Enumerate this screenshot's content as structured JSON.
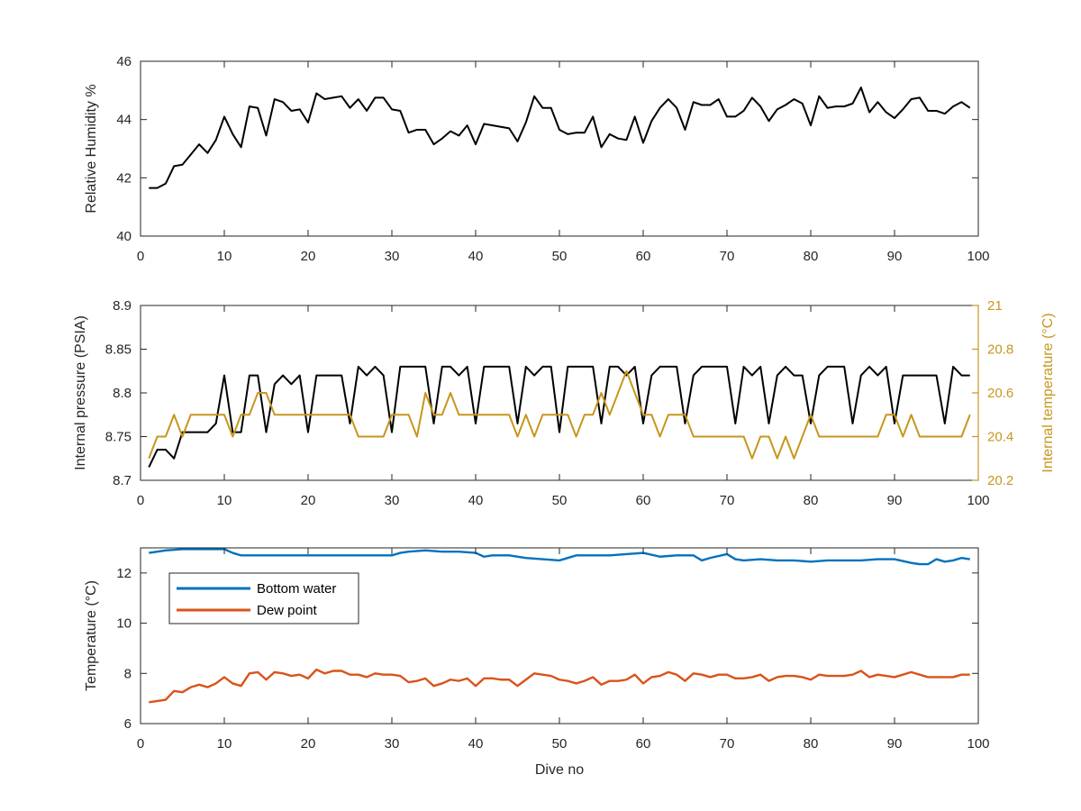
{
  "chart_data": [
    {
      "type": "line",
      "xlabel": "",
      "ylabel": "Relative Humidity %",
      "xlim": [
        0,
        100
      ],
      "ylim": [
        40,
        46
      ],
      "xticks": [
        0,
        10,
        20,
        30,
        40,
        50,
        60,
        70,
        80,
        90,
        100
      ],
      "yticks": [
        40,
        42,
        44,
        46
      ],
      "grid": false,
      "series": [
        {
          "color": "#000000",
          "x": [
            1,
            2,
            3,
            4,
            5,
            6,
            7,
            8,
            9,
            10,
            11,
            12,
            13,
            14,
            15,
            16,
            17,
            18,
            19,
            20,
            21,
            22,
            23,
            24,
            25,
            26,
            27,
            28,
            29,
            30,
            31,
            32,
            33,
            34,
            35,
            36,
            37,
            38,
            39,
            40,
            41,
            42,
            43,
            44,
            45,
            46,
            47,
            48,
            49,
            50,
            51,
            52,
            53,
            54,
            55,
            56,
            57,
            58,
            59,
            60,
            61,
            62,
            63,
            64,
            65,
            66,
            67,
            68,
            69,
            70,
            71,
            72,
            73,
            74,
            75,
            76,
            77,
            78,
            79,
            80,
            81,
            82,
            83,
            84,
            85,
            86,
            87,
            88,
            89,
            90,
            91,
            92,
            93,
            94,
            95,
            96,
            97,
            98,
            99
          ],
          "y": [
            41.65,
            41.65,
            41.8,
            42.4,
            42.45,
            42.8,
            43.15,
            42.85,
            43.3,
            44.1,
            43.5,
            43.05,
            44.45,
            44.4,
            43.45,
            44.7,
            44.6,
            44.3,
            44.35,
            43.9,
            44.9,
            44.7,
            44.75,
            44.8,
            44.4,
            44.7,
            44.3,
            44.75,
            44.75,
            44.35,
            44.3,
            43.55,
            43.65,
            43.65,
            43.15,
            43.35,
            43.6,
            43.45,
            43.8,
            43.15,
            43.85,
            43.8,
            43.75,
            43.7,
            43.25,
            43.9,
            44.8,
            44.4,
            44.4,
            43.65,
            43.5,
            43.55,
            43.55,
            44.1,
            43.05,
            43.5,
            43.35,
            43.3,
            44.1,
            43.2,
            43.95,
            44.4,
            44.7,
            44.4,
            43.65,
            44.6,
            44.5,
            44.5,
            44.7,
            44.1,
            44.1,
            44.3,
            44.75,
            44.45,
            43.95,
            44.35,
            44.5,
            44.7,
            44.55,
            43.8,
            44.8,
            44.4,
            44.45,
            44.45,
            44.55,
            45.1,
            44.25,
            44.6,
            44.25,
            44.05,
            44.35,
            44.7,
            44.75,
            44.3,
            44.3,
            44.2,
            44.45,
            44.6,
            44.4
          ]
        }
      ]
    },
    {
      "type": "line",
      "xlabel": "",
      "ylabel": "Internal pressure (PSIA)",
      "y2label": "Internal temperature (°C)",
      "xlim": [
        0,
        100
      ],
      "ylim": [
        8.7,
        8.9
      ],
      "y2lim": [
        20.2,
        21
      ],
      "xticks": [
        0,
        10,
        20,
        30,
        40,
        50,
        60,
        70,
        80,
        90,
        100
      ],
      "yticks": [
        8.7,
        8.75,
        8.8,
        8.85,
        8.9
      ],
      "yticklabels": [
        "8.7",
        "8.75",
        "8.8",
        "8.85",
        "8.9"
      ],
      "y2ticks": [
        20.2,
        20.4,
        20.6,
        20.8,
        21
      ],
      "y2ticklabels": [
        "20.2",
        "20.4",
        "20.6",
        "20.8",
        "21"
      ],
      "y2color": "#C8961E",
      "grid": false,
      "series": [
        {
          "axis": "left",
          "color": "#000000",
          "x": [
            1,
            2,
            3,
            4,
            5,
            6,
            7,
            8,
            9,
            10,
            11,
            12,
            13,
            14,
            15,
            16,
            17,
            18,
            19,
            20,
            21,
            22,
            23,
            24,
            25,
            26,
            27,
            28,
            29,
            30,
            31,
            32,
            33,
            34,
            35,
            36,
            37,
            38,
            39,
            40,
            41,
            42,
            43,
            44,
            45,
            46,
            47,
            48,
            49,
            50,
            51,
            52,
            53,
            54,
            55,
            56,
            57,
            58,
            59,
            60,
            61,
            62,
            63,
            64,
            65,
            66,
            67,
            68,
            69,
            70,
            71,
            72,
            73,
            74,
            75,
            76,
            77,
            78,
            79,
            80,
            81,
            82,
            83,
            84,
            85,
            86,
            87,
            88,
            89,
            90,
            91,
            92,
            93,
            94,
            95,
            96,
            97,
            98,
            99
          ],
          "y": [
            8.715,
            8.735,
            8.735,
            8.725,
            8.755,
            8.755,
            8.755,
            8.755,
            8.765,
            8.82,
            8.755,
            8.755,
            8.82,
            8.82,
            8.755,
            8.81,
            8.82,
            8.81,
            8.82,
            8.755,
            8.82,
            8.82,
            8.82,
            8.82,
            8.765,
            8.83,
            8.82,
            8.83,
            8.82,
            8.755,
            8.83,
            8.83,
            8.83,
            8.83,
            8.765,
            8.83,
            8.83,
            8.82,
            8.83,
            8.765,
            8.83,
            8.83,
            8.83,
            8.83,
            8.765,
            8.83,
            8.82,
            8.83,
            8.83,
            8.755,
            8.83,
            8.83,
            8.83,
            8.83,
            8.765,
            8.83,
            8.83,
            8.82,
            8.83,
            8.765,
            8.82,
            8.83,
            8.83,
            8.83,
            8.765,
            8.82,
            8.83,
            8.83,
            8.83,
            8.83,
            8.765,
            8.83,
            8.82,
            8.83,
            8.765,
            8.82,
            8.83,
            8.82,
            8.82,
            8.765,
            8.82,
            8.83,
            8.83,
            8.83,
            8.765,
            8.82,
            8.83,
            8.82,
            8.83,
            8.765,
            8.82,
            8.82,
            8.82,
            8.82,
            8.82,
            8.765,
            8.83,
            8.82,
            8.82
          ]
        },
        {
          "axis": "right",
          "color": "#C8961E",
          "x": [
            1,
            2,
            3,
            4,
            5,
            6,
            7,
            8,
            9,
            10,
            11,
            12,
            13,
            14,
            15,
            16,
            17,
            18,
            19,
            20,
            21,
            22,
            23,
            24,
            25,
            26,
            27,
            28,
            29,
            30,
            31,
            32,
            33,
            34,
            35,
            36,
            37,
            38,
            39,
            40,
            41,
            42,
            43,
            44,
            45,
            46,
            47,
            48,
            49,
            50,
            51,
            52,
            53,
            54,
            55,
            56,
            57,
            58,
            59,
            60,
            61,
            62,
            63,
            64,
            65,
            66,
            67,
            68,
            69,
            70,
            71,
            72,
            73,
            74,
            75,
            76,
            77,
            78,
            79,
            80,
            81,
            82,
            83,
            84,
            85,
            86,
            87,
            88,
            89,
            90,
            91,
            92,
            93,
            94,
            95,
            96,
            97,
            98,
            99
          ],
          "y": [
            20.3,
            20.4,
            20.4,
            20.5,
            20.4,
            20.5,
            20.5,
            20.5,
            20.5,
            20.5,
            20.4,
            20.5,
            20.5,
            20.6,
            20.6,
            20.5,
            20.5,
            20.5,
            20.5,
            20.5,
            20.5,
            20.5,
            20.5,
            20.5,
            20.5,
            20.4,
            20.4,
            20.4,
            20.4,
            20.5,
            20.5,
            20.5,
            20.4,
            20.6,
            20.5,
            20.5,
            20.6,
            20.5,
            20.5,
            20.5,
            20.5,
            20.5,
            20.5,
            20.5,
            20.4,
            20.5,
            20.4,
            20.5,
            20.5,
            20.5,
            20.5,
            20.4,
            20.5,
            20.5,
            20.6,
            20.5,
            20.6,
            20.7,
            20.6,
            20.5,
            20.5,
            20.4,
            20.5,
            20.5,
            20.5,
            20.4,
            20.4,
            20.4,
            20.4,
            20.4,
            20.4,
            20.4,
            20.3,
            20.4,
            20.4,
            20.3,
            20.4,
            20.3,
            20.4,
            20.5,
            20.4,
            20.4,
            20.4,
            20.4,
            20.4,
            20.4,
            20.4,
            20.4,
            20.5,
            20.5,
            20.4,
            20.5,
            20.4,
            20.4,
            20.4,
            20.4,
            20.4,
            20.4,
            20.5
          ]
        }
      ]
    },
    {
      "type": "line",
      "xlabel": "Dive no",
      "ylabel": "Temperature (°C)",
      "xlim": [
        0,
        100
      ],
      "ylim": [
        6,
        13
      ],
      "xticks": [
        0,
        10,
        20,
        30,
        40,
        50,
        60,
        70,
        80,
        90,
        100
      ],
      "yticks": [
        6,
        8,
        10,
        12
      ],
      "grid": false,
      "legend_position": "top-left",
      "series": [
        {
          "name": "Bottom water",
          "color": "#0072BD",
          "x": [
            1,
            3,
            5,
            7,
            9,
            10,
            11,
            12,
            14,
            16,
            18,
            20,
            22,
            24,
            26,
            28,
            30,
            31,
            32,
            34,
            36,
            38,
            40,
            41,
            42,
            44,
            46,
            48,
            50,
            52,
            54,
            56,
            58,
            60,
            62,
            64,
            66,
            67,
            68,
            70,
            71,
            72,
            74,
            76,
            78,
            80,
            82,
            84,
            86,
            88,
            90,
            92,
            93,
            94,
            95,
            96,
            97,
            98,
            99
          ],
          "y": [
            12.8,
            12.9,
            12.95,
            12.95,
            12.95,
            12.95,
            12.8,
            12.7,
            12.7,
            12.7,
            12.7,
            12.7,
            12.7,
            12.7,
            12.7,
            12.7,
            12.7,
            12.8,
            12.85,
            12.9,
            12.85,
            12.85,
            12.8,
            12.65,
            12.7,
            12.7,
            12.6,
            12.55,
            12.5,
            12.7,
            12.7,
            12.7,
            12.75,
            12.8,
            12.65,
            12.7,
            12.7,
            12.5,
            12.6,
            12.75,
            12.55,
            12.5,
            12.55,
            12.5,
            12.5,
            12.45,
            12.5,
            12.5,
            12.5,
            12.55,
            12.55,
            12.4,
            12.35,
            12.35,
            12.55,
            12.45,
            12.5,
            12.6,
            12.55
          ]
        },
        {
          "name": "Dew point",
          "color": "#D95319",
          "x": [
            1,
            2,
            3,
            4,
            5,
            6,
            7,
            8,
            9,
            10,
            11,
            12,
            13,
            14,
            15,
            16,
            17,
            18,
            19,
            20,
            21,
            22,
            23,
            24,
            25,
            26,
            27,
            28,
            29,
            30,
            31,
            32,
            33,
            34,
            35,
            36,
            37,
            38,
            39,
            40,
            41,
            42,
            43,
            44,
            45,
            46,
            47,
            48,
            49,
            50,
            51,
            52,
            53,
            54,
            55,
            56,
            57,
            58,
            59,
            60,
            61,
            62,
            63,
            64,
            65,
            66,
            67,
            68,
            69,
            70,
            71,
            72,
            73,
            74,
            75,
            76,
            77,
            78,
            79,
            80,
            81,
            82,
            83,
            84,
            85,
            86,
            87,
            88,
            89,
            90,
            91,
            92,
            93,
            94,
            95,
            96,
            97,
            98,
            99
          ],
          "y": [
            6.85,
            6.9,
            6.95,
            7.3,
            7.25,
            7.45,
            7.55,
            7.45,
            7.6,
            7.85,
            7.6,
            7.5,
            8.0,
            8.05,
            7.75,
            8.05,
            8.0,
            7.9,
            7.95,
            7.8,
            8.15,
            8.0,
            8.1,
            8.1,
            7.95,
            7.95,
            7.85,
            8.0,
            7.95,
            7.95,
            7.9,
            7.65,
            7.7,
            7.8,
            7.5,
            7.6,
            7.75,
            7.7,
            7.8,
            7.5,
            7.8,
            7.8,
            7.75,
            7.75,
            7.5,
            7.75,
            8.0,
            7.95,
            7.9,
            7.75,
            7.7,
            7.6,
            7.7,
            7.85,
            7.55,
            7.7,
            7.7,
            7.75,
            7.95,
            7.6,
            7.85,
            7.9,
            8.05,
            7.95,
            7.7,
            8.0,
            7.95,
            7.85,
            7.95,
            7.95,
            7.8,
            7.8,
            7.85,
            7.95,
            7.7,
            7.85,
            7.9,
            7.9,
            7.85,
            7.75,
            7.95,
            7.9,
            7.9,
            7.9,
            7.95,
            8.1,
            7.85,
            7.95,
            7.9,
            7.85,
            7.95,
            8.05,
            7.95,
            7.85,
            7.85,
            7.85,
            7.85,
            7.95,
            7.95
          ]
        }
      ]
    }
  ]
}
